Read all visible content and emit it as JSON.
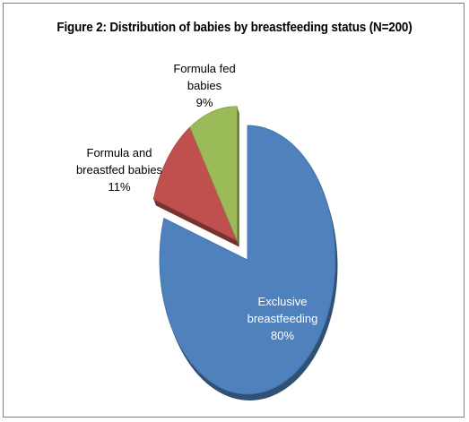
{
  "chart_data": {
    "type": "pie",
    "title": "Figure  2: Distribution of babies by breastfeeding status (N=200)",
    "slices": [
      {
        "label_lines": [
          "Exclusive",
          "breastfeeding"
        ],
        "value": 80,
        "value_label": "80%",
        "color": "#4f81bd",
        "exploded": false
      },
      {
        "label_lines": [
          "Formula and",
          "breastfed babies"
        ],
        "value": 11,
        "value_label": "11%",
        "color": "#c0504d",
        "exploded": true
      },
      {
        "label_lines": [
          "Formula fed",
          "babies"
        ],
        "value": 9,
        "value_label": "9%",
        "color": "#9bbb59",
        "exploded": true
      }
    ],
    "legend": "none"
  }
}
